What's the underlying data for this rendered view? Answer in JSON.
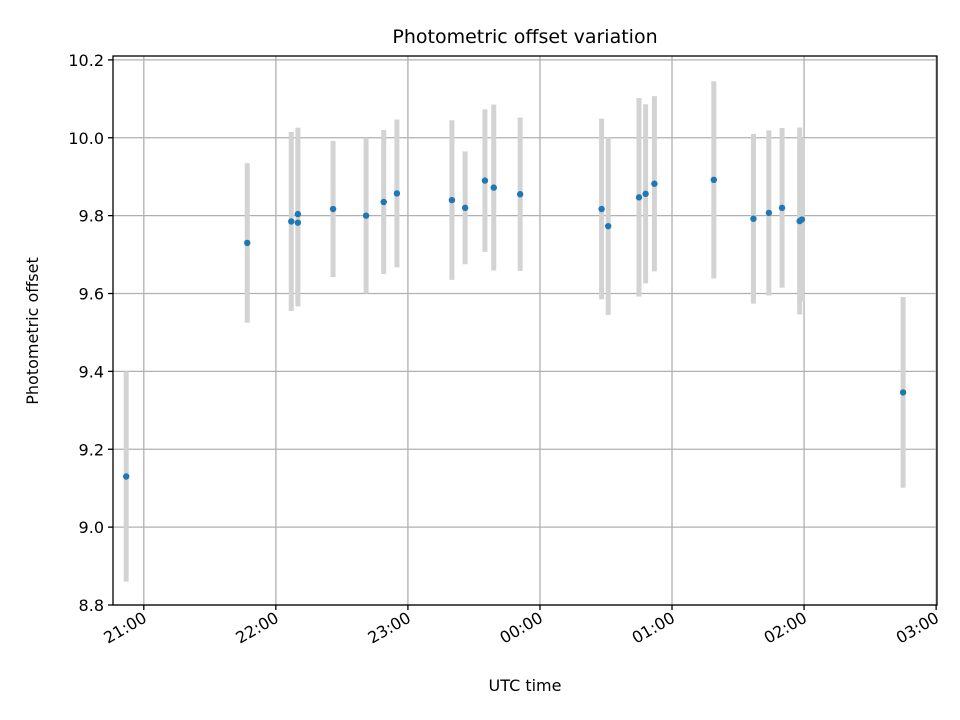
{
  "chart_data": {
    "type": "scatter",
    "title": "Photometric offset variation",
    "xlabel": "UTC time",
    "ylabel": "Photometric offset",
    "x_axis_kind": "time",
    "xlim": [
      "20:46",
      "03:00"
    ],
    "ylim": [
      8.8,
      10.21
    ],
    "grid": true,
    "y_ticks": [
      "8.8",
      "9.0",
      "9.2",
      "9.4",
      "9.6",
      "9.8",
      "10.0",
      "10.2"
    ],
    "x_ticks": [
      "21:00",
      "22:00",
      "23:00",
      "00:00",
      "01:00",
      "02:00",
      "03:00"
    ],
    "point_color": "#1f77b4",
    "errorbar_color": "#d3d3d3",
    "series": [
      {
        "points": [
          {
            "x": "20:52",
            "y": 9.13,
            "err": 0.27
          },
          {
            "x": "21:47",
            "y": 9.73,
            "err": 0.205
          },
          {
            "x": "22:07",
            "y": 9.785,
            "err": 0.23
          },
          {
            "x": "22:10",
            "y": 9.782,
            "err": 0.215
          },
          {
            "x": "22:10",
            "y": 9.804,
            "err": 0.222
          },
          {
            "x": "22:26",
            "y": 9.817,
            "err": 0.175
          },
          {
            "x": "22:41",
            "y": 9.8,
            "err": 0.2
          },
          {
            "x": "22:49",
            "y": 9.835,
            "err": 0.185
          },
          {
            "x": "22:55",
            "y": 9.857,
            "err": 0.19
          },
          {
            "x": "23:20",
            "y": 9.84,
            "err": 0.205
          },
          {
            "x": "23:26",
            "y": 9.82,
            "err": 0.145
          },
          {
            "x": "23:35",
            "y": 9.89,
            "err": 0.183
          },
          {
            "x": "23:39",
            "y": 9.872,
            "err": 0.213
          },
          {
            "x": "23:51",
            "y": 9.855,
            "err": 0.197
          },
          {
            "x": "00:28",
            "y": 9.817,
            "err": 0.232
          },
          {
            "x": "00:31",
            "y": 9.773,
            "err": 0.228
          },
          {
            "x": "00:45",
            "y": 9.847,
            "err": 0.255
          },
          {
            "x": "00:48",
            "y": 9.856,
            "err": 0.23
          },
          {
            "x": "00:52",
            "y": 9.882,
            "err": 0.225
          },
          {
            "x": "01:19",
            "y": 9.892,
            "err": 0.253
          },
          {
            "x": "01:37",
            "y": 9.792,
            "err": 0.218
          },
          {
            "x": "01:44",
            "y": 9.807,
            "err": 0.212
          },
          {
            "x": "01:50",
            "y": 9.82,
            "err": 0.205
          },
          {
            "x": "01:58",
            "y": 9.786,
            "err": 0.24
          },
          {
            "x": "01:59",
            "y": 9.79,
            "err": 0.21
          },
          {
            "x": "02:45",
            "y": 9.346,
            "err": 0.245
          }
        ]
      }
    ]
  }
}
